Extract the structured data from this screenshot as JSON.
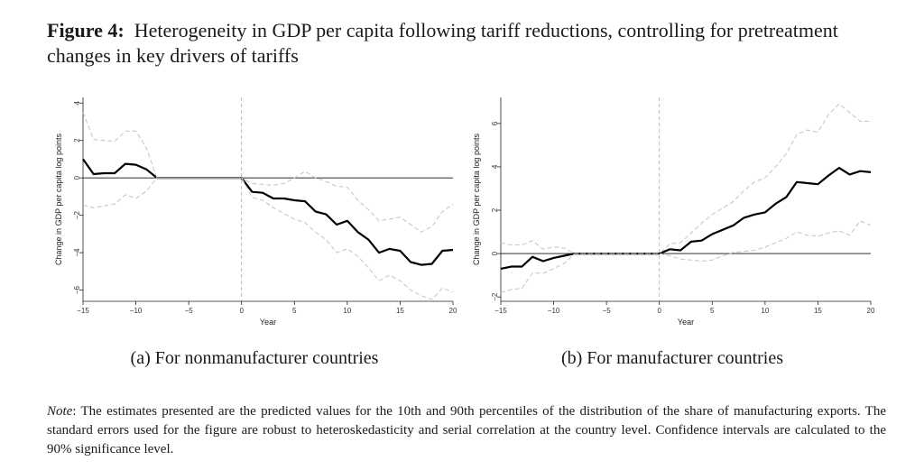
{
  "figure": {
    "label": "Figure 4:",
    "title": "Heterogeneity in GDP per capita following tariff reductions, controlling for pretreatment changes in key drivers of tariffs"
  },
  "chart_data": [
    {
      "type": "line",
      "caption": "(a) For nonmanufacturer countries",
      "xlabel": "Year",
      "ylabel": "Change in GDP per capita log points",
      "xlim": [
        -15,
        20
      ],
      "ylim": [
        -6.6,
        4.3
      ],
      "xticks": [
        -15,
        -10,
        -5,
        0,
        5,
        10,
        15,
        20
      ],
      "yticks": [
        -6,
        -4,
        -2,
        0,
        2,
        4
      ],
      "x": [
        -15,
        -14,
        -13,
        -12,
        -11,
        -10,
        -9,
        -8,
        -7,
        -6,
        -5,
        -4,
        -3,
        -2,
        -1,
        0,
        1,
        2,
        3,
        4,
        5,
        6,
        7,
        8,
        9,
        10,
        11,
        12,
        13,
        14,
        15,
        16,
        17,
        18,
        19,
        20
      ],
      "series": [
        {
          "style": "estimate",
          "values": [
            1.0,
            0.2,
            0.25,
            0.25,
            0.75,
            0.7,
            0.45,
            0,
            0,
            0,
            0,
            0,
            0,
            0,
            0,
            0,
            -0.75,
            -0.8,
            -1.1,
            -1.1,
            -1.2,
            -1.25,
            -1.8,
            -1.95,
            -2.5,
            -2.3,
            -2.9,
            -3.3,
            -4.0,
            -3.8,
            -3.9,
            -4.5,
            -4.65,
            -4.6,
            -3.9,
            -3.85
          ]
        },
        {
          "style": "ci",
          "values": [
            3.5,
            2.05,
            2.0,
            1.95,
            2.5,
            2.5,
            1.6,
            0,
            0,
            0,
            0,
            0,
            0,
            0,
            0,
            0,
            -0.3,
            -0.35,
            -0.4,
            -0.3,
            0,
            0.35,
            0,
            -0.2,
            -0.45,
            -0.5,
            -1.2,
            -1.7,
            -2.3,
            -2.2,
            -2.1,
            -2.5,
            -2.9,
            -2.6,
            -1.8,
            -1.4
          ]
        },
        {
          "style": "ci",
          "values": [
            -1.45,
            -1.6,
            -1.5,
            -1.4,
            -0.9,
            -1.1,
            -0.7,
            0,
            0,
            0,
            0,
            0,
            0,
            0,
            0,
            0,
            -1.05,
            -1.2,
            -1.6,
            -1.9,
            -2.2,
            -2.4,
            -2.9,
            -3.3,
            -4.0,
            -3.8,
            -4.2,
            -4.8,
            -5.5,
            -5.2,
            -5.5,
            -6.0,
            -6.3,
            -6.5,
            -5.9,
            -6.1
          ]
        }
      ],
      "zero_line": 0,
      "event_line": 0
    },
    {
      "type": "line",
      "caption": "(b) For manufacturer countries",
      "xlabel": "Year",
      "ylabel": "Change in GDP per capita log points",
      "xlim": [
        -15,
        20
      ],
      "ylim": [
        -2.2,
        7.2
      ],
      "xticks": [
        -15,
        -10,
        -5,
        0,
        5,
        10,
        15,
        20
      ],
      "yticks": [
        -2,
        0,
        2,
        4,
        6
      ],
      "x": [
        -15,
        -14,
        -13,
        -12,
        -11,
        -10,
        -9,
        -8,
        -7,
        -6,
        -5,
        -4,
        -3,
        -2,
        -1,
        0,
        1,
        2,
        3,
        4,
        5,
        6,
        7,
        8,
        9,
        10,
        11,
        12,
        13,
        14,
        15,
        16,
        17,
        18,
        19,
        20
      ],
      "series": [
        {
          "style": "estimate",
          "values": [
            -0.7,
            -0.6,
            -0.6,
            -0.15,
            -0.35,
            -0.2,
            -0.1,
            0,
            0,
            0,
            0,
            0,
            0,
            0,
            0,
            0,
            0.2,
            0.15,
            0.55,
            0.6,
            0.9,
            1.1,
            1.3,
            1.65,
            1.8,
            1.9,
            2.3,
            2.6,
            3.3,
            3.25,
            3.2,
            3.6,
            3.95,
            3.65,
            3.8,
            3.75
          ]
        },
        {
          "style": "ci",
          "values": [
            0.5,
            0.4,
            0.4,
            0.6,
            0.2,
            0.3,
            0.25,
            0,
            0,
            0,
            0,
            0,
            0,
            0,
            0,
            0,
            0.45,
            0.5,
            0.95,
            1.4,
            1.8,
            2.1,
            2.4,
            2.9,
            3.3,
            3.5,
            4.0,
            4.6,
            5.5,
            5.7,
            5.6,
            6.4,
            6.9,
            6.5,
            6.1,
            6.1
          ]
        },
        {
          "style": "ci",
          "values": [
            -1.8,
            -1.65,
            -1.6,
            -0.9,
            -0.9,
            -0.7,
            -0.45,
            0,
            0,
            0,
            0,
            0,
            0,
            0,
            0,
            0,
            -0.1,
            -0.25,
            -0.3,
            -0.35,
            -0.3,
            -0.1,
            0.05,
            0.1,
            0.15,
            0.3,
            0.5,
            0.7,
            1.0,
            0.85,
            0.8,
            0.95,
            1.05,
            0.85,
            1.5,
            1.3
          ]
        }
      ],
      "zero_line": 0,
      "event_line": 0
    }
  ],
  "note": {
    "label": "Note",
    "text": ": The estimates presented are the predicted values for the 10th and 90th percentiles of the distribution of the share of manufacturing exports. The standard errors used for the figure are robust to heteroskedasticity and serial correlation at the country level. Confidence intervals are calculated to the 90% significance level."
  }
}
